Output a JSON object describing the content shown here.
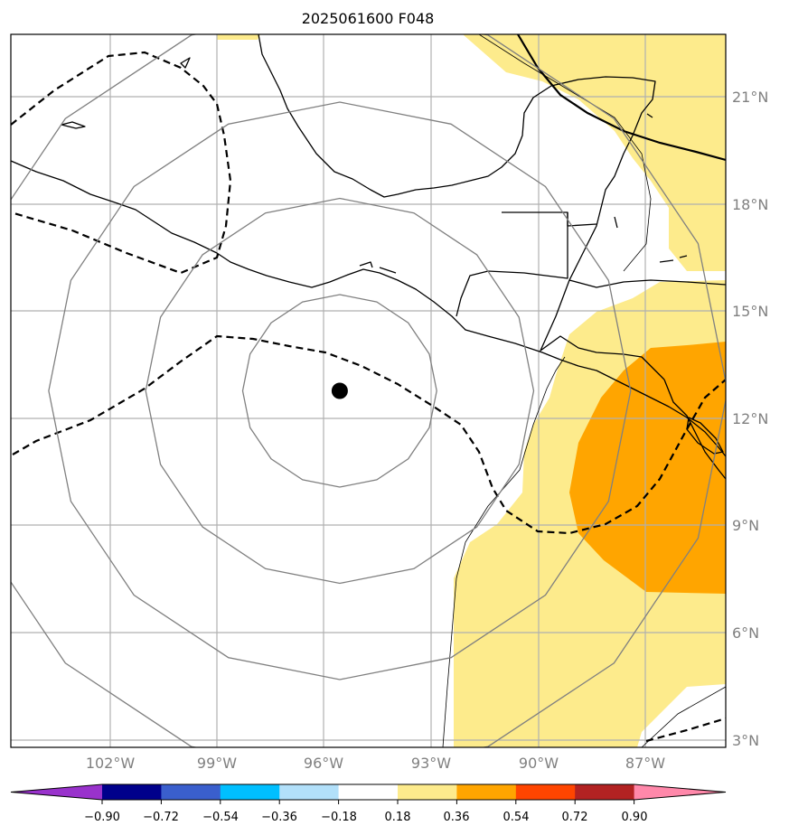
{
  "title": "2025061600 F048",
  "map": {
    "lon_range": [
      -104.0,
      -84.0
    ],
    "lat_range": [
      2.8,
      22.8
    ],
    "lon_gridlines": [
      -102,
      -99,
      -96,
      -93,
      -90,
      -87
    ],
    "lat_gridlines": [
      3,
      6,
      9,
      12,
      15,
      18,
      21
    ],
    "lon_labels": [
      "102°W",
      "99°W",
      "96°W",
      "93°W",
      "90°W",
      "87°W"
    ],
    "lat_labels": [
      "3°N",
      "6°N",
      "9°N",
      "12°N",
      "15°N",
      "18°N",
      "21°N"
    ],
    "center_marker": {
      "lon": -94.8,
      "lat": 12.8,
      "icon": "filled-circle-marker"
    },
    "range_rings_deg": [
      2.7,
      5.4,
      8.1,
      10.8
    ],
    "colors": {
      "grid": "#b0b0b0",
      "rings": "#808080",
      "coast": "#000000",
      "contour": "#000000"
    }
  },
  "colorbar": {
    "ticks": [
      "−0.90",
      "−0.72",
      "−0.54",
      "−0.36",
      "−0.18",
      "0.18",
      "0.36",
      "0.54",
      "0.72",
      "0.90"
    ],
    "colors": [
      "#9932CC",
      "#00008B",
      "#3A5FCD",
      "#00BFFF",
      "#B2E0FA",
      "#FFFFFF",
      "#FDEB8C",
      "#FFA500",
      "#FF4500",
      "#B22222",
      "#FF88AA"
    ]
  }
}
